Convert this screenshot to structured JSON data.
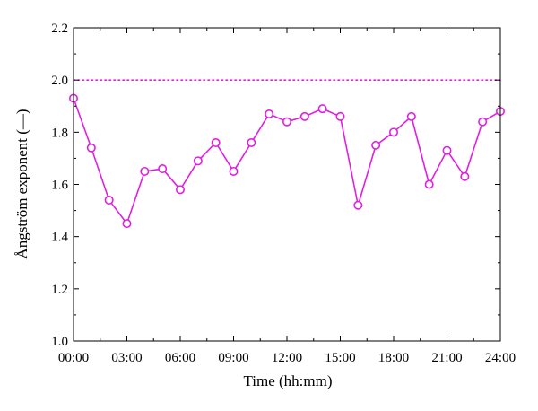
{
  "chart_data": {
    "type": "line",
    "xlabel": "Time (hh:mm)",
    "ylabel": "Ångström exponent (—)",
    "x_tick_labels": [
      "00:00",
      "03:00",
      "06:00",
      "09:00",
      "12:00",
      "15:00",
      "18:00",
      "21:00",
      "24:00"
    ],
    "x_tick_values": [
      0,
      3,
      6,
      9,
      12,
      15,
      18,
      21,
      24
    ],
    "y_tick_labels": [
      "1.0",
      "1.2",
      "1.4",
      "1.6",
      "1.8",
      "2.0",
      "2.2"
    ],
    "y_tick_values": [
      1.0,
      1.2,
      1.4,
      1.6,
      1.8,
      2.0,
      2.2
    ],
    "xlim": [
      0,
      24
    ],
    "ylim": [
      1.0,
      2.2
    ],
    "grid": false,
    "legend": "none",
    "series": [
      {
        "style": "solid-with-circle-markers",
        "color": "#e020e0",
        "x": [
          0,
          1,
          2,
          3,
          4,
          5,
          6,
          7,
          8,
          9,
          10,
          11,
          12,
          13,
          14,
          15,
          16,
          17,
          18,
          19,
          20,
          21,
          22,
          23,
          24
        ],
        "y": [
          1.93,
          1.74,
          1.54,
          1.45,
          1.65,
          1.66,
          1.58,
          1.69,
          1.76,
          1.65,
          1.76,
          1.87,
          1.84,
          1.86,
          1.89,
          1.86,
          1.52,
          1.75,
          1.8,
          1.86,
          1.6,
          1.73,
          1.63,
          1.84,
          1.88
        ]
      }
    ],
    "reference_lines": [
      {
        "style": "dotted",
        "color": "#e020e0",
        "y": 2.0
      }
    ]
  }
}
